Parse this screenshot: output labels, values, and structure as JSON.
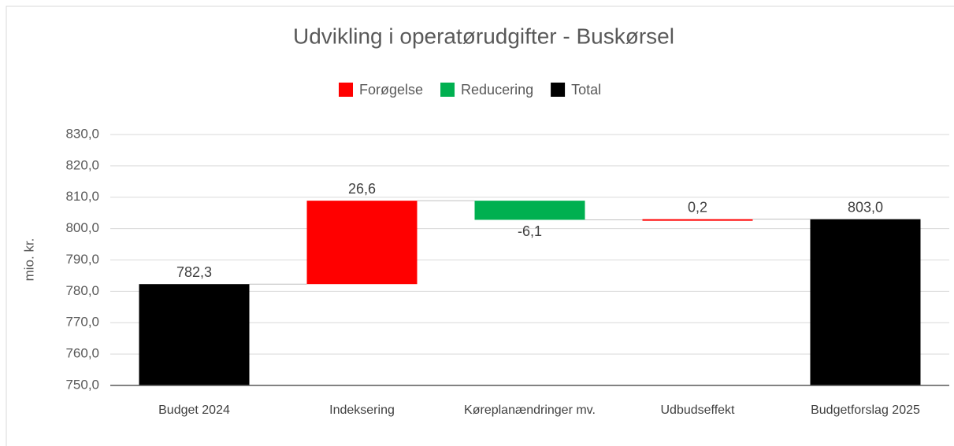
{
  "chart_data": {
    "type": "waterfall",
    "title": "Udvikling i operatørudgifter - Buskørsel",
    "y_label": "mio. kr.",
    "categories": [
      "Budget 2024",
      "Indeksering",
      "Køreplanændringer mv.",
      "Udbudseffekt",
      "Budgetforslag 2025"
    ],
    "series": [
      {
        "name": "Forøgelse",
        "color": "#ff0000",
        "values": [
          null,
          26.6,
          null,
          0.2,
          null
        ],
        "value_labels": [
          null,
          "26,6",
          null,
          "0,2",
          null
        ]
      },
      {
        "name": "Reducering",
        "color": "#00b050",
        "values": [
          null,
          null,
          -6.1,
          null,
          null
        ],
        "value_labels": [
          null,
          null,
          "-6,1",
          null,
          null
        ]
      },
      {
        "name": "Total",
        "color": "#000000",
        "values": [
          782.3,
          null,
          null,
          null,
          803.0
        ],
        "value_labels": [
          "782,3",
          null,
          null,
          null,
          "803,0"
        ]
      }
    ],
    "ylim": [
      750,
      830
    ],
    "yticks": [
      {
        "value": 750,
        "label": "750,0"
      },
      {
        "value": 760,
        "label": "760,0"
      },
      {
        "value": 770,
        "label": "770,0"
      },
      {
        "value": 780,
        "label": "780,0"
      },
      {
        "value": 790,
        "label": "790,0"
      },
      {
        "value": 800,
        "label": "800,0"
      },
      {
        "value": 810,
        "label": "810,0"
      },
      {
        "value": 820,
        "label": "820,0"
      },
      {
        "value": 830,
        "label": "830,0"
      }
    ],
    "grid": true
  }
}
